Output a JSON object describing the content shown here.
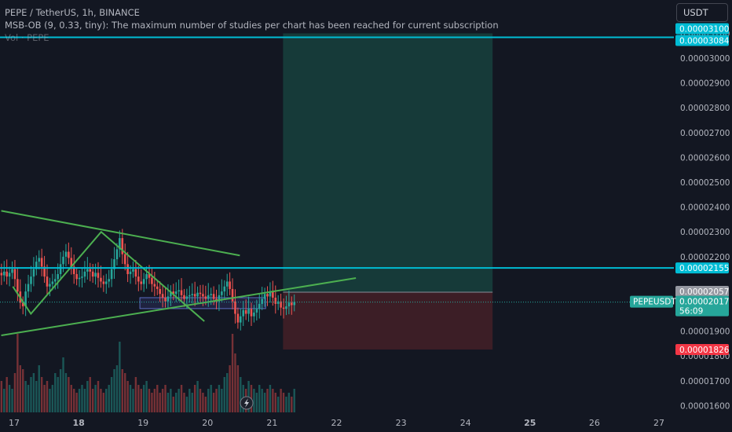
{
  "legend": {
    "symbol_line": "PEPE / TetherUS, 1h, BINANCE",
    "indicator_line": "MSB-OB (9, 0.33, tiny): The maximum number of studies per chart has been reached for current subscription",
    "volume_line": "Vol · PEPE"
  },
  "currency_button": "USDT",
  "colors": {
    "background": "#131722",
    "up": "#26a69a",
    "down": "#ef5350",
    "cyan_line": "#00bcd4",
    "trendline": "#4caf50",
    "long_profit_zone": "#163a39",
    "long_loss_zone": "#3c1e26",
    "order_block_fill": "#2a2e5a",
    "order_block_border": "#5c6bc0",
    "tag_blue": "#00bcd4",
    "tag_last": "#26a69a",
    "tag_red": "#f23645",
    "tag_gray": "#9598a1"
  },
  "chart_data": {
    "type": "candlestick",
    "symbol": "PEPE / TetherUS",
    "interval": "1h",
    "exchange": "BINANCE",
    "ylim": [
      1.57e-05,
      3.17e-05
    ],
    "xlim_day": [
      16.8,
      27.2
    ],
    "price_ticks": [
      "0.00003100",
      "0.00003000",
      "0.00002900",
      "0.00002800",
      "0.00002700",
      "0.00002600",
      "0.00002500",
      "0.00002400",
      "0.00002300",
      "0.00002200",
      "0.00001900",
      "0.00001800",
      "0.00001700",
      "0.00001600"
    ],
    "price_tick_values": [
      3.1e-05,
      3e-05,
      2.9e-05,
      2.8e-05,
      2.7e-05,
      2.6e-05,
      2.5e-05,
      2.4e-05,
      2.3e-05,
      2.2e-05,
      1.9e-05,
      1.8e-05,
      1.7e-05,
      1.6e-05
    ],
    "time_ticks": [
      {
        "label": "17",
        "day": 17,
        "bold": false
      },
      {
        "label": "18",
        "day": 18,
        "bold": true
      },
      {
        "label": "19",
        "day": 19,
        "bold": false
      },
      {
        "label": "20",
        "day": 20,
        "bold": false
      },
      {
        "label": "21",
        "day": 21,
        "bold": false
      },
      {
        "label": "22",
        "day": 22,
        "bold": false
      },
      {
        "label": "23",
        "day": 23,
        "bold": false
      },
      {
        "label": "24",
        "day": 24,
        "bold": false
      },
      {
        "label": "25",
        "day": 25,
        "bold": true
      },
      {
        "label": "26",
        "day": 26,
        "bold": false
      },
      {
        "label": "27",
        "day": 27,
        "bold": false
      }
    ],
    "candles_start_day": 16.72,
    "candle_hours": 1,
    "closes": [
      2.11e-05,
      2.135e-05,
      2.125e-05,
      2.14e-05,
      2.12e-05,
      2.135e-05,
      2.15e-05,
      2.11e-05,
      2.06e-05,
      2.015e-05,
      2e-05,
      2.06e-05,
      2.09e-05,
      2.12e-05,
      2.15e-05,
      2.18e-05,
      2.195e-05,
      2.16e-05,
      2.12e-05,
      2.08e-05,
      2.09e-05,
      2.1e-05,
      2.11e-05,
      2.13e-05,
      2.17e-05,
      2.2e-05,
      2.22e-05,
      2.195e-05,
      2.16e-05,
      2.13e-05,
      2.11e-05,
      2.115e-05,
      2.12e-05,
      2.14e-05,
      2.15e-05,
      2.14e-05,
      2.12e-05,
      2.135e-05,
      2.115e-05,
      2.1e-05,
      2.09e-05,
      2.1e-05,
      2.11e-05,
      2.15e-05,
      2.19e-05,
      2.23e-05,
      2.275e-05,
      2.21e-05,
      2.17e-05,
      2.13e-05,
      2.14e-05,
      2.15e-05,
      2.12e-05,
      2.1e-05,
      2.09e-05,
      2.11e-05,
      2.13e-05,
      2.115e-05,
      2.09e-05,
      2.08e-05,
      2.07e-05,
      2.05e-05,
      2.035e-05,
      2.02e-05,
      2.04e-05,
      2.06e-05,
      2.05e-05,
      2.06e-05,
      2.065e-05,
      2.045e-05,
      2.03e-05,
      2.04e-05,
      2.045e-05,
      2.05e-05,
      2.04e-05,
      2.055e-05,
      2.05e-05,
      2.04e-05,
      2.03e-05,
      2.045e-05,
      2.05e-05,
      2.03e-05,
      2.02e-05,
      2.045e-05,
      2.06e-05,
      2.08e-05,
      2.1e-05,
      2.07e-05,
      2.02e-05,
      1.97e-05,
      1.935e-05,
      1.96e-05,
      1.985e-05,
      1.97e-05,
      1.99e-05,
      1.96e-05,
      1.975e-05,
      1.99e-05,
      2.01e-05,
      2.03e-05,
      2.05e-05,
      2.04e-05,
      2.06e-05,
      2.035e-05,
      2.01e-05,
      2.02e-05,
      1.995e-05,
      1.99e-05,
      2e-05,
      2.015e-05,
      2.005e-05,
      2.017e-05
    ],
    "volumes": [
      0.35,
      0.5,
      0.4,
      0.3,
      0.45,
      0.35,
      0.3,
      0.5,
      1.0,
      0.6,
      0.55,
      0.4,
      0.35,
      0.45,
      0.5,
      0.4,
      0.6,
      0.45,
      0.35,
      0.4,
      0.3,
      0.35,
      0.5,
      0.45,
      0.55,
      0.7,
      0.5,
      0.45,
      0.35,
      0.3,
      0.25,
      0.3,
      0.35,
      0.3,
      0.4,
      0.45,
      0.3,
      0.35,
      0.4,
      0.3,
      0.25,
      0.3,
      0.35,
      0.45,
      0.55,
      0.6,
      0.9,
      0.55,
      0.5,
      0.4,
      0.35,
      0.3,
      0.45,
      0.35,
      0.3,
      0.35,
      0.4,
      0.3,
      0.25,
      0.3,
      0.35,
      0.25,
      0.3,
      0.35,
      0.25,
      0.3,
      0.2,
      0.25,
      0.3,
      0.35,
      0.25,
      0.2,
      0.3,
      0.25,
      0.35,
      0.4,
      0.3,
      0.25,
      0.2,
      0.3,
      0.35,
      0.25,
      0.3,
      0.35,
      0.3,
      0.45,
      0.5,
      0.6,
      1.0,
      0.75,
      0.6,
      0.45,
      0.35,
      0.3,
      0.4,
      0.35,
      0.3,
      0.25,
      0.35,
      0.3,
      0.25,
      0.3,
      0.35,
      0.3,
      0.25,
      0.2,
      0.3,
      0.25,
      0.2,
      0.25,
      0.2,
      0.3
    ],
    "horizontal_levels": [
      {
        "price": 3.084e-05,
        "color": "#00bcd4"
      },
      {
        "price": 2.155e-05,
        "color": "#00bcd4"
      }
    ],
    "last_price_line": {
      "price": 2.017e-05
    },
    "long_position": {
      "day_start": 21.17,
      "day_end": 24.42,
      "entry": 2.057e-05,
      "target": 3.1e-05,
      "stop": 1.826e-05
    },
    "order_block": {
      "day_start": 18.95,
      "day_end": 20.9,
      "price_top": 2.035e-05,
      "price_bottom": 1.991e-05
    },
    "trendlines": [
      {
        "points": [
          [
            16.8,
            2.385e-05
          ],
          [
            20.5,
            2.205e-05
          ]
        ],
        "color": "#4caf50"
      },
      {
        "points": [
          [
            16.8,
            1.883e-05
          ],
          [
            22.3,
            2.114e-05
          ]
        ],
        "color": "#4caf50"
      },
      {
        "points": [
          [
            16.98,
            2.08e-05
          ],
          [
            17.26,
            1.97e-05
          ],
          [
            18.35,
            2.3e-05
          ],
          [
            19.95,
            1.94e-05
          ]
        ],
        "color": "#4caf50"
      }
    ],
    "price_tags": [
      {
        "text": "0.00003100",
        "price": 3.1e-05,
        "bg": "#00bcd4",
        "fg": "#ffffff",
        "offset_y": -6
      },
      {
        "text": "0.00003084",
        "price": 3.084e-05,
        "bg": "#00bcd4",
        "fg": "#ffffff",
        "offset_y": 4
      },
      {
        "text": "0.00002155",
        "price": 2.155e-05,
        "bg": "#00bcd4",
        "fg": "#ffffff",
        "offset_y": 0
      },
      {
        "text": "0.00002057",
        "price": 2.057e-05,
        "bg": "#9598a1",
        "fg": "#ffffff",
        "offset_y": -1
      },
      {
        "text": "0.00001826",
        "price": 1.826e-05,
        "bg": "#f23645",
        "fg": "#ffffff",
        "offset_y": 0
      }
    ],
    "last_price_tag": {
      "symbol": "PEPEUSDT",
      "price_text": "0.00002017",
      "countdown": "56:09"
    }
  }
}
